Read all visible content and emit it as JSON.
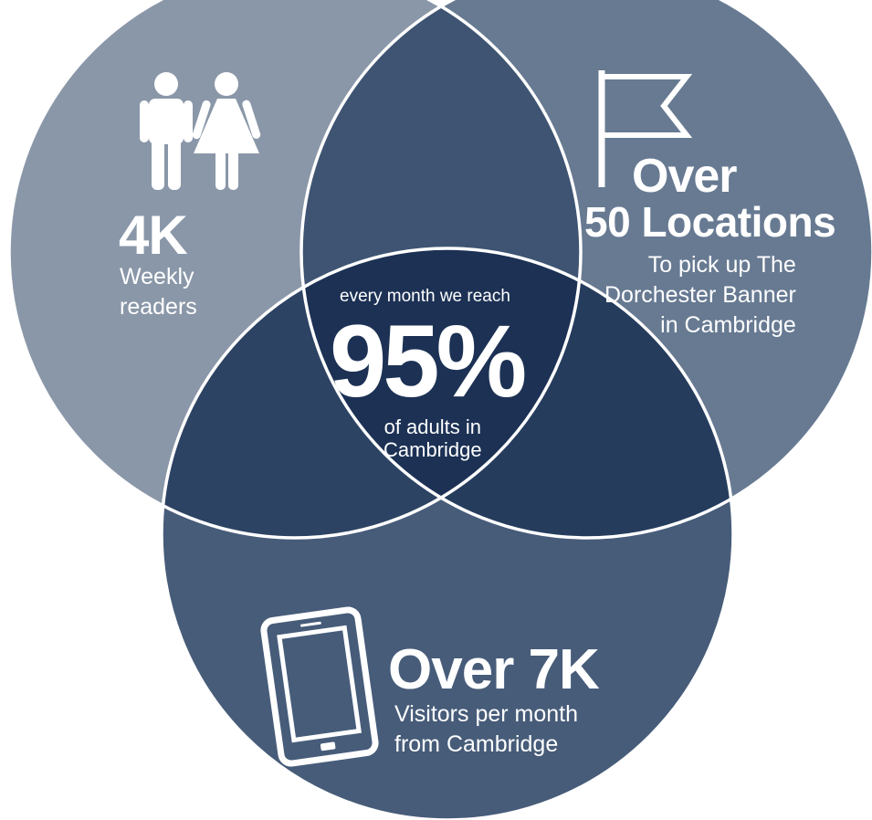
{
  "colors": {
    "circle_left": "#8a97a8",
    "circle_right": "#677a92",
    "circle_bottom": "#475c79",
    "overlap_left_right": "#3e5472",
    "overlap_left_bottom": "#2d4363",
    "overlap_right_bottom": "#253c5d",
    "overlap_center": "#1c3154",
    "outline": "#ffffff",
    "text": "#ffffff"
  },
  "icons": {
    "left": "man-woman-icon",
    "right": "flag-icon",
    "bottom": "tablet-icon"
  },
  "left_circle": {
    "value": "4K",
    "label": "Weekly\nreaders"
  },
  "right_circle": {
    "value_line1": "Over",
    "value_line2": "50 Locations",
    "label": "To pick up The\nDorchester Banner\nin Cambridge"
  },
  "bottom_circle": {
    "value": "Over 7K",
    "label": "Visitors per month\nfrom Cambridge"
  },
  "center": {
    "intro": "every month we reach",
    "value": "95%",
    "label": "of adults in\nCambridge"
  }
}
